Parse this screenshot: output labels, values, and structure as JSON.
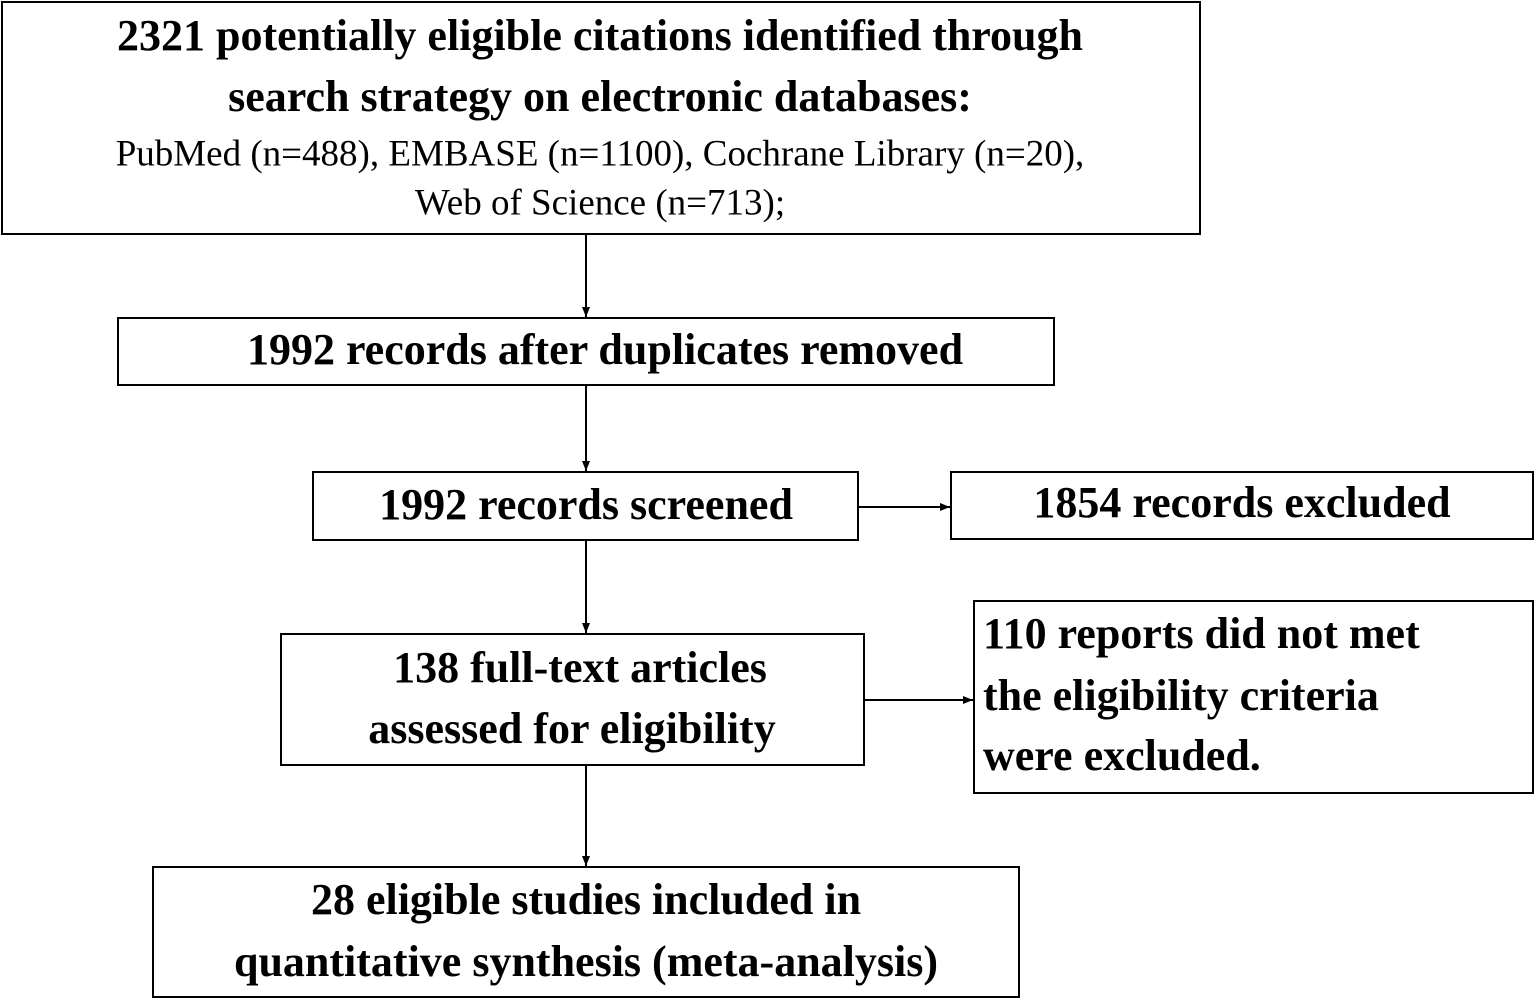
{
  "nodes": [
    {
      "lines": [
        "2321 potentially eligible citations identified through",
        "search strategy on electronic databases:"
      ],
      "details": [
        "PubMed (n=488), EMBASE (n=1100), Cochrane Library (n=20),",
        "Web of Science (n=713);"
      ]
    },
    {
      "lines": [
        "1992 records after duplicates removed"
      ]
    },
    {
      "lines": [
        "1992 records screened"
      ]
    },
    {
      "lines": [
        "1854 records excluded"
      ]
    },
    {
      "lines": [
        "138 full-text articles",
        "assessed for eligibility"
      ]
    },
    {
      "lines": [
        "110 reports did not met",
        "the eligibility criteria",
        "were excluded."
      ]
    },
    {
      "lines": [
        "28 eligible studies included in",
        "quantitative synthesis (meta-analysis)"
      ]
    }
  ]
}
